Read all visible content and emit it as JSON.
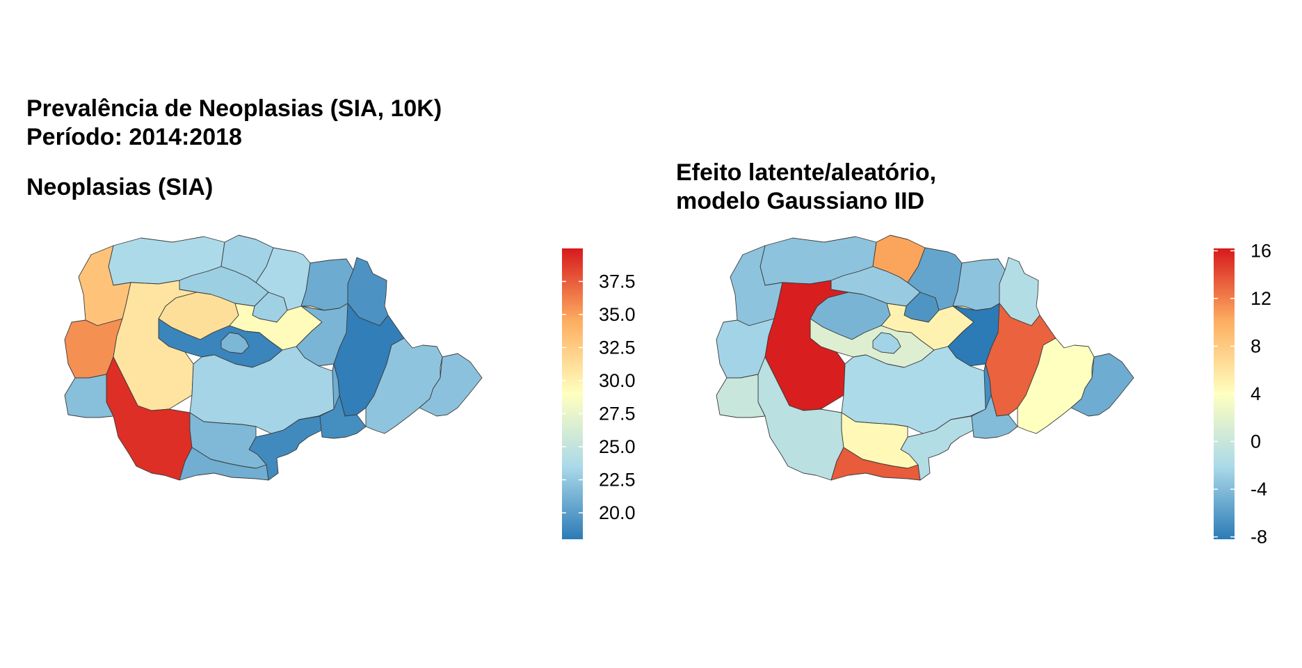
{
  "titles": {
    "main_line1": "Prevalência de Neoplasias (SIA, 10K)",
    "main_line2": "Período: 2014:2018",
    "left": "Neoplasias (SIA)",
    "right_line1": "Efeito latente/aleatório,",
    "right_line2": "modelo Gaussiano IID"
  },
  "palette": [
    "#2c7bb6",
    "#abd9e9",
    "#ffffbf",
    "#fdae61",
    "#d7191c"
  ],
  "region_outline_color": "#3a3a3a",
  "maps": [
    {
      "id": "neoplasias",
      "legend": {
        "min": 18.0,
        "max": 40.0,
        "ticks": [
          20.0,
          22.5,
          25.0,
          27.5,
          30.0,
          32.5,
          35.0,
          37.5
        ],
        "tick_labels": [
          "20.0",
          "22.5",
          "25.0",
          "27.5",
          "30.0",
          "32.5",
          "35.0",
          "37.5"
        ]
      },
      "region_values": [
        23.6,
        23.1,
        23.5,
        22.9,
        20.8,
        19.4,
        31.2,
        23.0,
        29.3,
        21.4,
        18.6,
        18.2,
        33.1,
        35.6,
        30.8,
        39.2,
        22.0,
        23.2,
        20.9,
        18.9,
        19.1,
        21.6,
        22.3,
        22.1,
        21.5,
        21.0
      ]
    },
    {
      "id": "efeito-latente",
      "legend": {
        "min": -8.2,
        "max": 16.2,
        "ticks": [
          -8,
          -4,
          0,
          4,
          8,
          12,
          16
        ],
        "tick_labels": [
          "-8",
          "-4",
          "0",
          "4",
          "8",
          "12",
          "16"
        ]
      },
      "region_values": [
        -3.5,
        10.5,
        -5.5,
        -3.0,
        -3.5,
        -1.5,
        -4.5,
        -6.5,
        5.0,
        -8.2,
        1.5,
        13.2,
        -3.5,
        -2.5,
        16.0,
        -1.0,
        0.0,
        -2.0,
        -7.0,
        -1.5,
        -4.0,
        4.5,
        4.0,
        -5.0,
        -2.5,
        13.5
      ]
    }
  ]
}
